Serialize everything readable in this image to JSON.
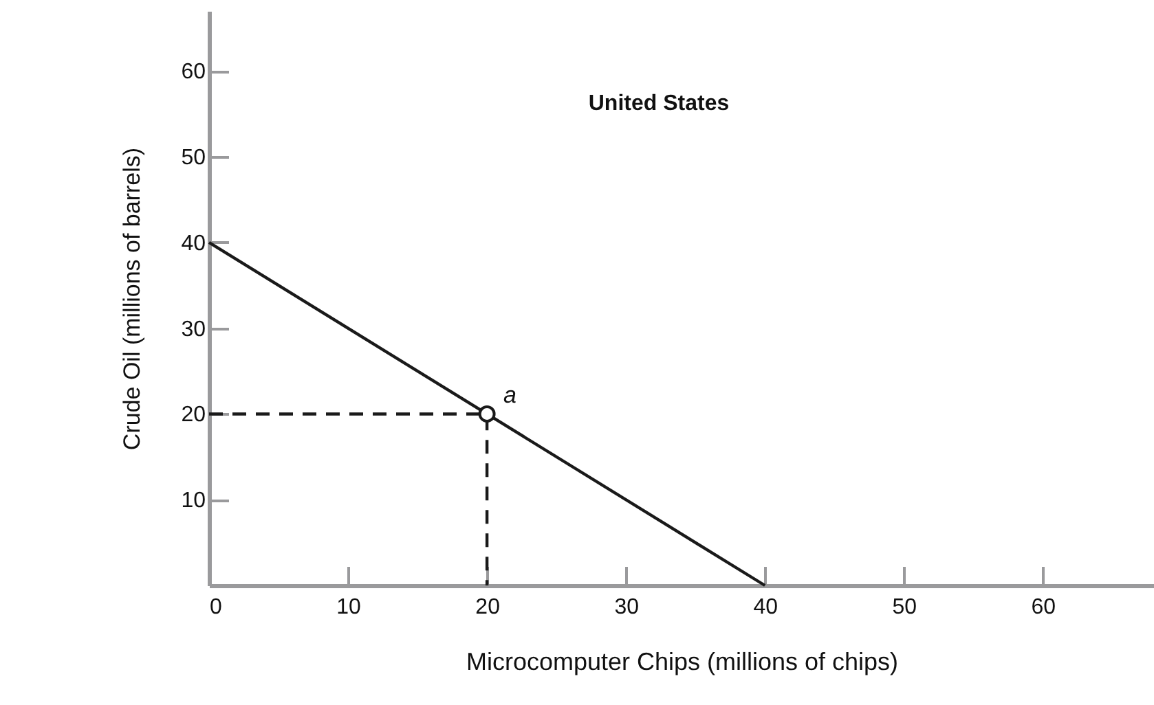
{
  "chart_data": {
    "type": "line",
    "title": "United States",
    "xlabel": "Microcomputer Chips (millions of chips)",
    "ylabel": "Crude Oil (millions of barrels)",
    "series": [
      {
        "type": "line",
        "color": "#1a1a1a",
        "x": [
          0,
          40
        ],
        "values": [
          40,
          0
        ],
        "line_style": "solid"
      },
      {
        "type": "line",
        "color": "#1a1a1a",
        "x": [
          0,
          20,
          20
        ],
        "values": [
          20,
          20,
          0
        ],
        "line_style": "dashed"
      },
      {
        "type": "scatter",
        "color": "#1a1a1a",
        "x": [
          20
        ],
        "values": [
          20
        ],
        "marker": "circle"
      }
    ],
    "annotations": [
      {
        "text": "a",
        "x": 20,
        "y": 20
      }
    ],
    "xlim": [
      0,
      68
    ],
    "xticks": [
      {
        "value": 0,
        "label": "0"
      },
      10,
      20,
      30,
      40,
      50,
      60
    ],
    "ylim": [
      0,
      67
    ],
    "yticks": [
      10,
      20,
      30,
      40,
      50,
      60
    ],
    "grid": false
  }
}
